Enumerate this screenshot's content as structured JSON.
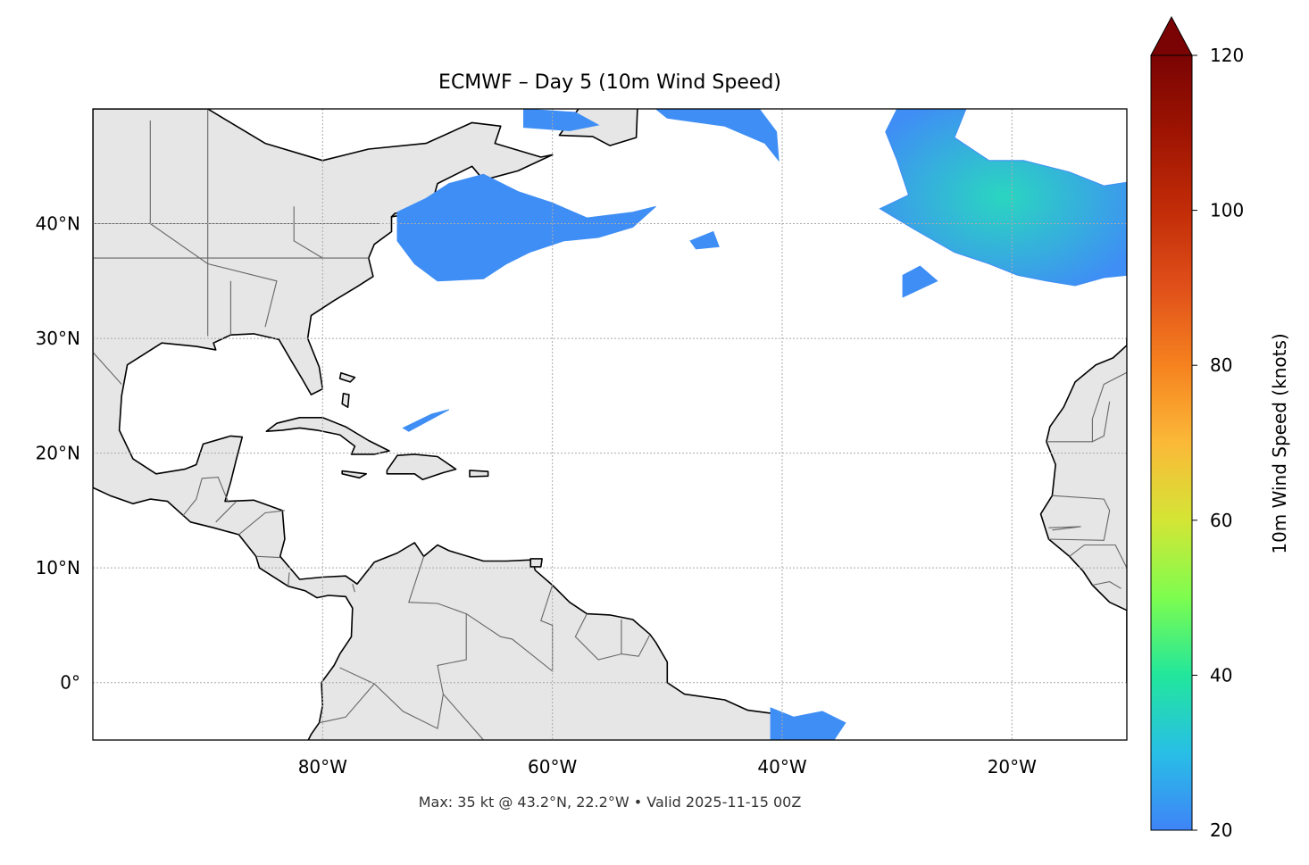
{
  "chart_data": {
    "type": "map",
    "title": "ECMWF – Day 5 (10m Wind Speed)",
    "extent": {
      "lon": [
        -100,
        -10
      ],
      "lat": [
        -5,
        50
      ]
    },
    "x_ticks": [
      {
        "value": -80,
        "label": "80°W"
      },
      {
        "value": -60,
        "label": "60°W"
      },
      {
        "value": -40,
        "label": "40°W"
      },
      {
        "value": -20,
        "label": "20°W"
      }
    ],
    "y_ticks": [
      {
        "value": 0,
        "label": "0°"
      },
      {
        "value": 10,
        "label": "10°N"
      },
      {
        "value": 20,
        "label": "20°N"
      },
      {
        "value": 30,
        "label": "30°N"
      },
      {
        "value": 40,
        "label": "40°N"
      }
    ],
    "grid": true,
    "colorbar": {
      "label": "10m Wind Speed (knots)",
      "range": [
        20,
        120
      ],
      "extend": "max",
      "ticks": [
        {
          "value": 20,
          "label": "20"
        },
        {
          "value": 40,
          "label": "40"
        },
        {
          "value": 60,
          "label": "60"
        },
        {
          "value": 80,
          "label": "80"
        },
        {
          "value": 100,
          "label": "100"
        },
        {
          "value": 120,
          "label": "120"
        }
      ],
      "colormap": "turbo",
      "colors": [
        "#3f84f7",
        "#28bfe6",
        "#22e69c",
        "#7dfd4f",
        "#d4e535",
        "#fbb938",
        "#f6821f",
        "#e0501a",
        "#c22c08",
        "#9e1402",
        "#7a0403"
      ]
    },
    "footer": "Max: 35 kt @ 43.2°N, 22.2°W • Valid 2025-11-15 00Z",
    "colors": {
      "land": "#e6e6e6",
      "coast": "#000000",
      "borders": "#666666",
      "wind_low": "#3f8ef5",
      "wind_high": "#2ad6c0"
    }
  }
}
